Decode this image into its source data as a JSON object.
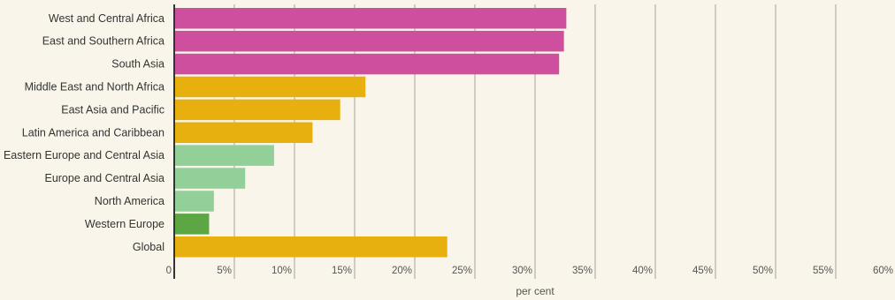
{
  "chart_data": {
    "type": "bar",
    "orientation": "horizontal",
    "categories": [
      "West and Central Africa",
      "East and Southern Africa",
      "South Asia",
      "Middle East and North Africa",
      "East Asia and Pacific",
      "Latin America and Caribbean",
      "Eastern Europe and Central Asia",
      "Europe and Central Asia",
      "North America",
      "Western Europe",
      "Global"
    ],
    "values": [
      32.6,
      32.4,
      32.0,
      15.9,
      13.8,
      11.5,
      8.3,
      5.9,
      3.3,
      2.9,
      22.7
    ],
    "colors": [
      "#cd4f9e",
      "#cd4f9e",
      "#cd4f9e",
      "#e8b00f",
      "#e8b00f",
      "#e8b00f",
      "#93cf98",
      "#93cf98",
      "#93cf98",
      "#5da644",
      "#e8b00f"
    ],
    "xlim": [
      0,
      60
    ],
    "xticks": [
      0,
      5,
      10,
      15,
      20,
      25,
      30,
      35,
      40,
      45,
      50,
      55,
      60
    ],
    "xtick_labels": [
      "0",
      "5%",
      "10%",
      "15%",
      "20%",
      "25%",
      "30%",
      "35%",
      "40%",
      "45%",
      "50%",
      "55%",
      "60%"
    ],
    "xlabel": "per cent",
    "ylabel": "",
    "title": "",
    "grid": true,
    "legend": "none"
  }
}
